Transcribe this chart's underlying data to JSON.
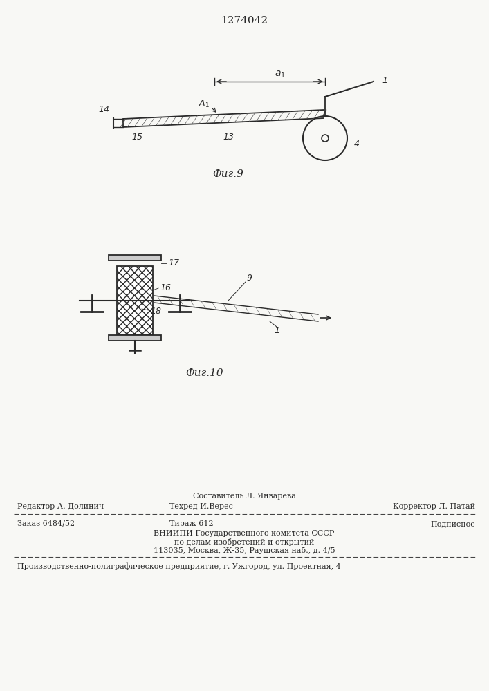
{
  "patent_number": "1274042",
  "bg_color": "#f8f8f5",
  "fig9_caption": "Фиг.9",
  "fig10_caption": "Фиг.10",
  "footer_line1_left": "Редактор А. Долинич",
  "footer_line1_center_top": "Составитель Л. Январева",
  "footer_line1_center_bot": "Техред И.Верес",
  "footer_line1_right": "Корректор Л. Патай",
  "footer_line2_left": "Заказ 6484/52",
  "footer_line2_center": "Тираж 612",
  "footer_line2_right": "Подписное",
  "footer_line3": "ВНИИПИ Государственного комитета СССР",
  "footer_line4": "по делам изобретений и открытий",
  "footer_line5": "113035, Москва, Ж-35, Раушская наб., д. 4/5",
  "footer_last": "Производственно-полиграфическое предприятие, г. Ужгород, ул. Проектная, 4"
}
